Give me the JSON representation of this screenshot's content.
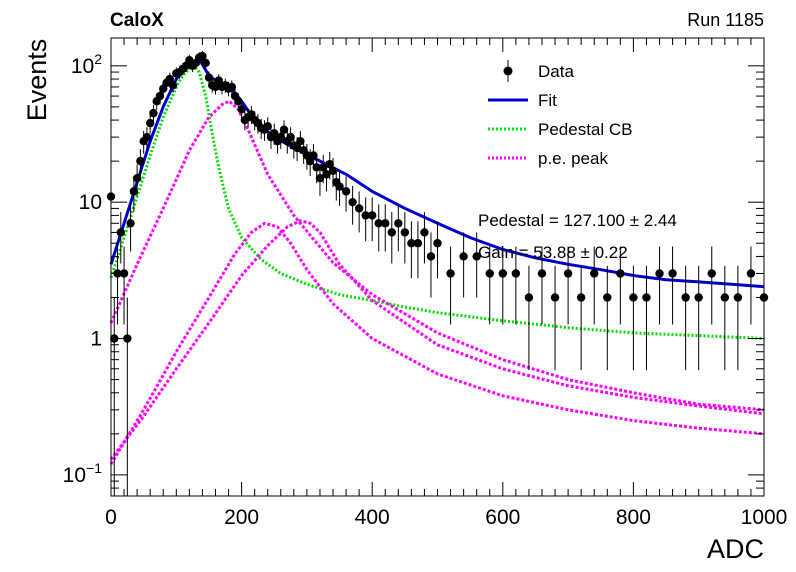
{
  "header": {
    "left": "CaloX",
    "right": "Run 1185"
  },
  "chart_data": {
    "type": "scatter",
    "title": "",
    "xlabel": "ADC",
    "ylabel": "Events",
    "xlim": [
      0,
      1000
    ],
    "ylim": [
      0.07,
      160
    ],
    "yscale": "log",
    "x_ticks": [
      "0",
      "200",
      "400",
      "600",
      "800",
      "1000"
    ],
    "y_ticks": [
      {
        "v": 0.1,
        "base": "10",
        "exp": "−1"
      },
      {
        "v": 1,
        "base": "1",
        "exp": ""
      },
      {
        "v": 10,
        "base": "10",
        "exp": ""
      },
      {
        "v": 100,
        "base": "10",
        "exp": "2"
      }
    ],
    "legend_position": "top-right",
    "legend": [
      {
        "label": "Data",
        "style": "marker",
        "color": "#000000"
      },
      {
        "label": "Fit",
        "style": "solid",
        "color": "#0000cc"
      },
      {
        "label": "Pedestal CB",
        "style": "dotted",
        "color": "#00dd00"
      },
      {
        "label": "p.e. peak",
        "style": "dotted",
        "color": "#ff00ff"
      }
    ],
    "annotations": [
      "Pedestal = 127.100 ± 2.44",
      "Gain = 53.88 ± 0.22"
    ],
    "series": [
      {
        "name": "Data",
        "style": "points",
        "x": [
          0,
          5,
          10,
          15,
          20,
          25,
          30,
          35,
          40,
          45,
          50,
          55,
          60,
          65,
          70,
          75,
          80,
          85,
          90,
          95,
          100,
          105,
          110,
          115,
          120,
          125,
          130,
          135,
          140,
          145,
          150,
          155,
          160,
          165,
          170,
          175,
          180,
          185,
          190,
          195,
          200,
          205,
          210,
          215,
          220,
          225,
          230,
          235,
          240,
          245,
          250,
          255,
          260,
          265,
          270,
          275,
          280,
          285,
          290,
          295,
          300,
          305,
          310,
          315,
          320,
          325,
          330,
          335,
          340,
          345,
          350,
          360,
          370,
          380,
          390,
          400,
          410,
          420,
          430,
          440,
          450,
          460,
          470,
          480,
          490,
          500,
          520,
          540,
          560,
          580,
          600,
          620,
          640,
          660,
          680,
          700,
          720,
          740,
          760,
          780,
          800,
          820,
          840,
          860,
          880,
          900,
          920,
          940,
          960,
          980,
          1000
        ],
        "y": [
          11,
          1,
          3,
          6,
          3,
          1,
          7,
          12,
          15,
          20,
          28,
          30,
          38,
          45,
          55,
          60,
          68,
          75,
          80,
          72,
          88,
          90,
          95,
          100,
          110,
          100,
          105,
          115,
          118,
          105,
          82,
          72,
          70,
          78,
          70,
          72,
          68,
          70,
          60,
          55,
          48,
          40,
          42,
          44,
          40,
          38,
          35,
          34,
          36,
          30,
          32,
          28,
          30,
          34,
          28,
          30,
          26,
          25,
          28,
          24,
          22,
          20,
          22,
          18,
          15,
          18,
          16,
          19,
          17,
          14,
          13,
          12,
          10,
          9,
          8,
          8,
          7,
          7,
          6,
          7,
          6,
          5,
          5,
          6,
          4,
          5,
          3,
          4,
          4,
          3,
          3,
          3,
          2,
          3,
          2,
          3,
          2,
          3,
          2,
          3,
          2,
          2,
          3,
          3,
          2,
          2,
          3,
          2,
          2,
          3,
          2
        ]
      },
      {
        "name": "Fit",
        "style": "line",
        "x": [
          0,
          20,
          40,
          60,
          80,
          100,
          120,
          135,
          150,
          165,
          180,
          200,
          220,
          250,
          280,
          320,
          360,
          400,
          450,
          500,
          550,
          600,
          650,
          700,
          750,
          800,
          850,
          900,
          950,
          1000
        ],
        "y": [
          3.5,
          7,
          14,
          28,
          50,
          80,
          105,
          112,
          85,
          75,
          72,
          55,
          40,
          30,
          25,
          20,
          16,
          12,
          9,
          7,
          5.5,
          4.5,
          3.9,
          3.5,
          3.2,
          2.9,
          2.7,
          2.6,
          2.5,
          2.4
        ]
      },
      {
        "name": "Pedestal CB",
        "style": "dotted",
        "x": [
          0,
          20,
          40,
          60,
          80,
          100,
          110,
          120,
          127,
          135,
          145,
          155,
          165,
          180,
          200,
          230,
          260,
          300,
          350,
          400,
          450,
          500,
          600,
          700,
          800,
          900,
          1000
        ],
        "y": [
          2.8,
          5.5,
          11,
          22,
          42,
          70,
          85,
          95,
          100,
          90,
          60,
          32,
          18,
          9,
          5.5,
          3.8,
          3,
          2.5,
          2.1,
          1.9,
          1.7,
          1.55,
          1.35,
          1.2,
          1.1,
          1.05,
          1.0
        ]
      },
      {
        "name": "p.e. peak 1",
        "style": "dotted",
        "x": [
          0,
          40,
          80,
          120,
          150,
          170,
          181,
          195,
          210,
          240,
          280,
          340,
          400,
          500,
          600,
          700,
          800,
          900,
          1000
        ],
        "y": [
          1.3,
          3.5,
          9,
          24,
          42,
          52,
          55,
          48,
          34,
          16,
          8,
          3.6,
          2.1,
          1.1,
          0.7,
          0.5,
          0.4,
          0.33,
          0.3
        ]
      },
      {
        "name": "p.e. peak 2",
        "style": "dotted",
        "x": [
          0,
          50,
          100,
          150,
          190,
          215,
          235,
          255,
          275,
          300,
          340,
          400,
          500,
          600,
          700,
          800,
          900,
          1000
        ],
        "y": [
          0.12,
          0.3,
          0.8,
          2,
          4.2,
          6,
          7,
          6.6,
          5,
          3.2,
          1.8,
          1.0,
          0.55,
          0.38,
          0.3,
          0.25,
          0.22,
          0.2
        ]
      },
      {
        "name": "p.e. peak 3",
        "style": "dotted",
        "x": [
          0,
          50,
          100,
          150,
          200,
          240,
          270,
          290,
          305,
          320,
          350,
          400,
          500,
          600,
          700,
          800,
          900,
          1000
        ],
        "y": [
          0.13,
          0.27,
          0.6,
          1.3,
          2.9,
          4.8,
          6.6,
          7.3,
          7,
          6,
          3.5,
          1.9,
          0.9,
          0.6,
          0.45,
          0.37,
          0.32,
          0.28
        ]
      }
    ]
  }
}
